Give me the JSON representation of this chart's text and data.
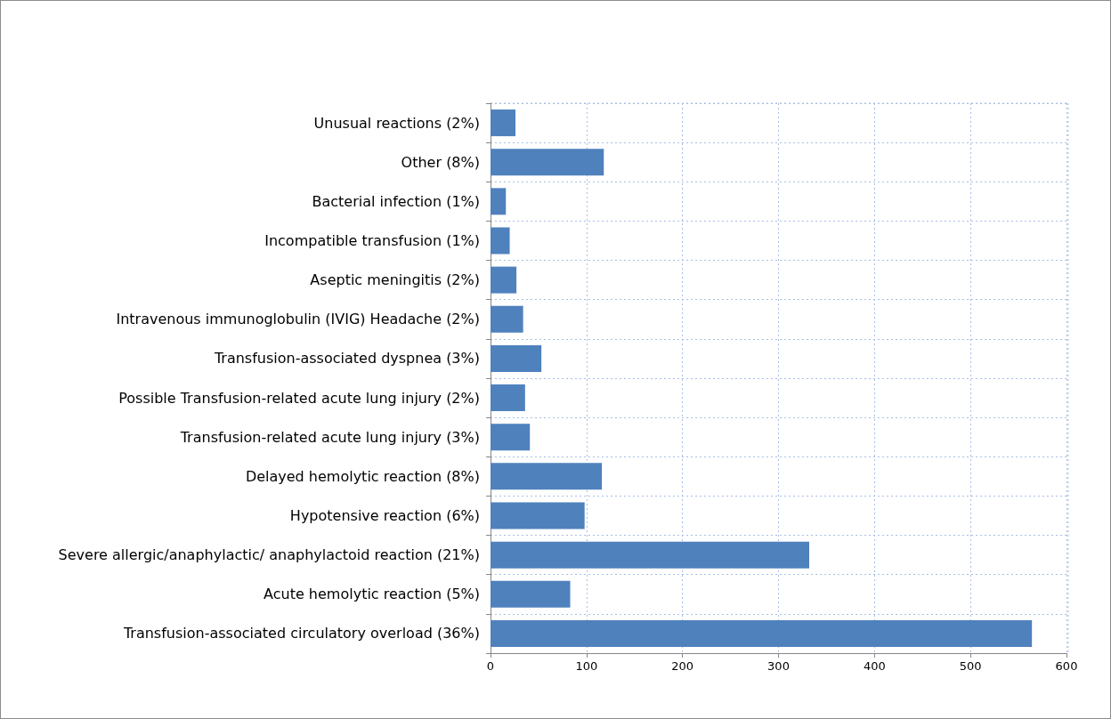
{
  "chart_data": {
    "type": "bar",
    "orientation": "horizontal",
    "categories": [
      "Unusual reactions (2%)",
      "Other (8%)",
      "Bacterial infection (1%)",
      "Incompatible transfusion (1%)",
      "Aseptic meningitis (2%)",
      "Intravenous immunoglobulin (IVIG) Headache (2%)",
      "Transfusion-associated dyspnea (3%)",
      "Possible Transfusion-related acute lung injury (2%)",
      "Transfusion-related acute lung injury (3%)",
      "Delayed hemolytic reaction (8%)",
      "Hypotensive reaction (6%)",
      "Severe allergic/anaphylactic/ anaphylactoid reaction (21%)",
      "Acute hemolytic reaction (5%)",
      "Transfusion-associated circulatory overload (36%)"
    ],
    "values": [
      26,
      118,
      16,
      20,
      27,
      34,
      53,
      36,
      41,
      116,
      98,
      332,
      83,
      564
    ],
    "color": "#4f81bd",
    "xlim": [
      0,
      600
    ],
    "xticks": [
      0,
      100,
      200,
      300,
      400,
      500,
      600
    ],
    "grid": true
  }
}
